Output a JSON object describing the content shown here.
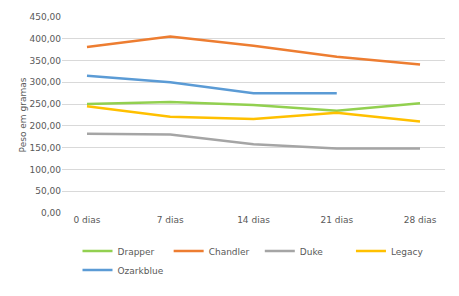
{
  "chart_data": {
    "type": "line",
    "y_label": "Peso em gramas",
    "categories": [
      "0 dias",
      "7 dias",
      "14 dias",
      "21 dias",
      "28 dias"
    ],
    "series": [
      {
        "name": "Drapper",
        "color": "#92d050",
        "values": [
          250,
          255,
          248,
          235,
          252
        ]
      },
      {
        "name": "Chandler",
        "color": "#ed7d31",
        "values": [
          381,
          405,
          384,
          359,
          341
        ]
      },
      {
        "name": "Duke",
        "color": "#a5a5a5",
        "values": [
          182,
          180,
          158,
          148,
          148
        ]
      },
      {
        "name": "Legacy",
        "color": "#ffc000",
        "values": [
          245,
          221,
          216,
          230,
          210
        ]
      },
      {
        "name": "Ozarkblue",
        "color": "#5b9bd5",
        "values": [
          315,
          300,
          275,
          275,
          null
        ]
      }
    ],
    "ylim": [
      0,
      450
    ],
    "yticks": [
      {
        "value": 0,
        "label": "0,00"
      },
      {
        "value": 50,
        "label": "50,00"
      },
      {
        "value": 100,
        "label": "100,00"
      },
      {
        "value": 150,
        "label": "150,00"
      },
      {
        "value": 200,
        "label": "200,00"
      },
      {
        "value": 250,
        "label": "250,00"
      },
      {
        "value": 300,
        "label": "300,00"
      },
      {
        "value": 350,
        "label": "350,00"
      },
      {
        "value": 400,
        "label": "400,00"
      },
      {
        "value": 450,
        "label": "450,00"
      }
    ],
    "grid": true,
    "legend": "bottom"
  }
}
